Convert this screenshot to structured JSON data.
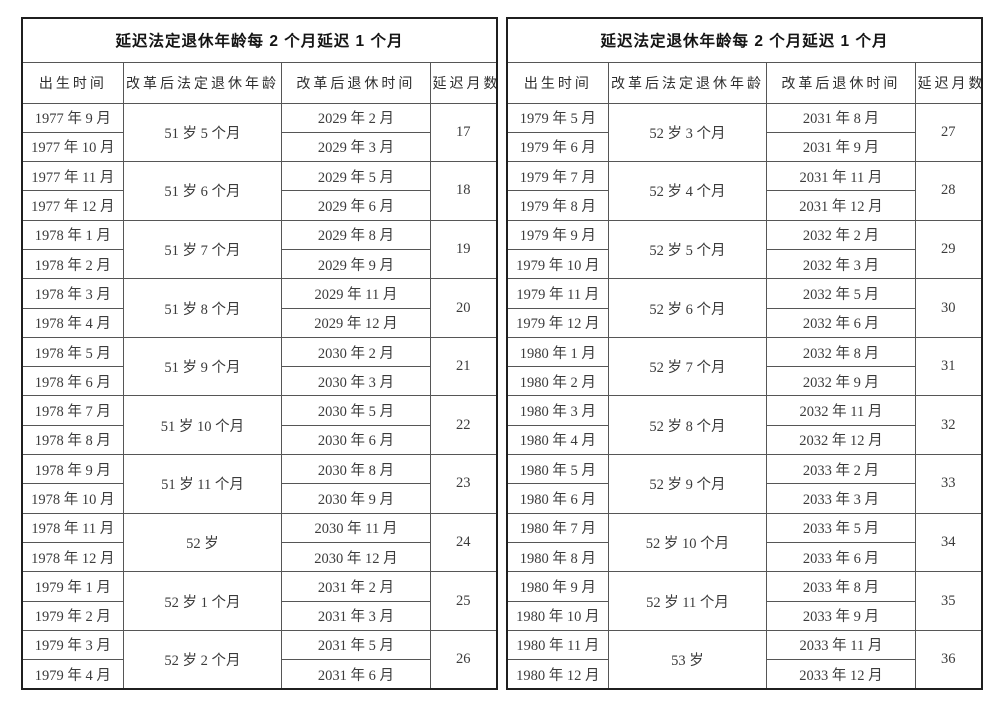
{
  "colors": {
    "background": "#ffffff",
    "outer_border": "#1f1f1f",
    "inner_border": "#565656",
    "text": "#3b3b3b",
    "title_text": "#141414"
  },
  "tables": [
    {
      "title": "延迟法定退休年龄每 2 个月延迟 1 个月",
      "columns": [
        "出生时间",
        "改革后法定退休年龄",
        "改革后退休时间",
        "延迟月数"
      ],
      "groups": [
        {
          "births": [
            "1977 年 9 月",
            "1977 年 10 月"
          ],
          "age": "51 岁 5 个月",
          "retirements": [
            "2029 年 2 月",
            "2029 年 3 月"
          ],
          "delay": "17"
        },
        {
          "births": [
            "1977 年 11 月",
            "1977 年 12 月"
          ],
          "age": "51 岁 6 个月",
          "retirements": [
            "2029 年 5 月",
            "2029 年 6 月"
          ],
          "delay": "18"
        },
        {
          "births": [
            "1978 年 1 月",
            "1978 年 2 月"
          ],
          "age": "51 岁 7 个月",
          "retirements": [
            "2029 年 8 月",
            "2029 年 9 月"
          ],
          "delay": "19"
        },
        {
          "births": [
            "1978 年 3 月",
            "1978 年 4 月"
          ],
          "age": "51 岁 8 个月",
          "retirements": [
            "2029 年 11 月",
            "2029 年 12 月"
          ],
          "delay": "20"
        },
        {
          "births": [
            "1978 年 5 月",
            "1978 年 6 月"
          ],
          "age": "51 岁 9 个月",
          "retirements": [
            "2030 年 2 月",
            "2030 年 3 月"
          ],
          "delay": "21"
        },
        {
          "births": [
            "1978 年 7 月",
            "1978 年 8 月"
          ],
          "age": "51 岁 10 个月",
          "retirements": [
            "2030 年 5 月",
            "2030 年 6 月"
          ],
          "delay": "22"
        },
        {
          "births": [
            "1978 年 9 月",
            "1978 年 10 月"
          ],
          "age": "51 岁 11 个月",
          "retirements": [
            "2030 年 8 月",
            "2030 年 9 月"
          ],
          "delay": "23"
        },
        {
          "births": [
            "1978 年 11 月",
            "1978 年 12 月"
          ],
          "age": "52 岁",
          "retirements": [
            "2030 年 11 月",
            "2030 年 12 月"
          ],
          "delay": "24"
        },
        {
          "births": [
            "1979 年 1 月",
            "1979 年 2 月"
          ],
          "age": "52 岁 1 个月",
          "retirements": [
            "2031 年 2 月",
            "2031 年 3 月"
          ],
          "delay": "25"
        },
        {
          "births": [
            "1979 年 3 月",
            "1979 年 4 月"
          ],
          "age": "52 岁 2 个月",
          "retirements": [
            "2031 年 5 月",
            "2031 年 6 月"
          ],
          "delay": "26"
        }
      ]
    },
    {
      "title": "延迟法定退休年龄每 2 个月延迟 1 个月",
      "columns": [
        "出生时间",
        "改革后法定退休年龄",
        "改革后退休时间",
        "延迟月数"
      ],
      "groups": [
        {
          "births": [
            "1979 年 5 月",
            "1979 年 6 月"
          ],
          "age": "52 岁 3 个月",
          "retirements": [
            "2031 年 8 月",
            "2031 年 9 月"
          ],
          "delay": "27"
        },
        {
          "births": [
            "1979 年 7 月",
            "1979 年 8 月"
          ],
          "age": "52 岁 4 个月",
          "retirements": [
            "2031 年 11 月",
            "2031 年 12 月"
          ],
          "delay": "28"
        },
        {
          "births": [
            "1979 年 9 月",
            "1979 年 10 月"
          ],
          "age": "52 岁 5 个月",
          "retirements": [
            "2032 年 2 月",
            "2032 年 3 月"
          ],
          "delay": "29"
        },
        {
          "births": [
            "1979 年 11 月",
            "1979 年 12 月"
          ],
          "age": "52 岁 6 个月",
          "retirements": [
            "2032 年 5 月",
            "2032 年 6 月"
          ],
          "delay": "30"
        },
        {
          "births": [
            "1980 年 1 月",
            "1980 年 2 月"
          ],
          "age": "52 岁 7 个月",
          "retirements": [
            "2032 年 8 月",
            "2032 年 9 月"
          ],
          "delay": "31"
        },
        {
          "births": [
            "1980 年 3 月",
            "1980 年 4 月"
          ],
          "age": "52 岁 8 个月",
          "retirements": [
            "2032 年 11 月",
            "2032 年 12 月"
          ],
          "delay": "32"
        },
        {
          "births": [
            "1980 年 5 月",
            "1980 年 6 月"
          ],
          "age": "52 岁 9 个月",
          "retirements": [
            "2033 年 2 月",
            "2033 年 3 月"
          ],
          "delay": "33"
        },
        {
          "births": [
            "1980 年 7 月",
            "1980 年 8 月"
          ],
          "age": "52 岁 10 个月",
          "retirements": [
            "2033 年 5 月",
            "2033 年 6 月"
          ],
          "delay": "34"
        },
        {
          "births": [
            "1980 年 9 月",
            "1980 年 10 月"
          ],
          "age": "52 岁 11 个月",
          "retirements": [
            "2033 年 8 月",
            "2033 年 9 月"
          ],
          "delay": "35"
        },
        {
          "births": [
            "1980 年 11 月",
            "1980 年 12 月"
          ],
          "age": "53 岁",
          "retirements": [
            "2033 年 11 月",
            "2033 年 12 月"
          ],
          "delay": "36"
        }
      ]
    }
  ]
}
